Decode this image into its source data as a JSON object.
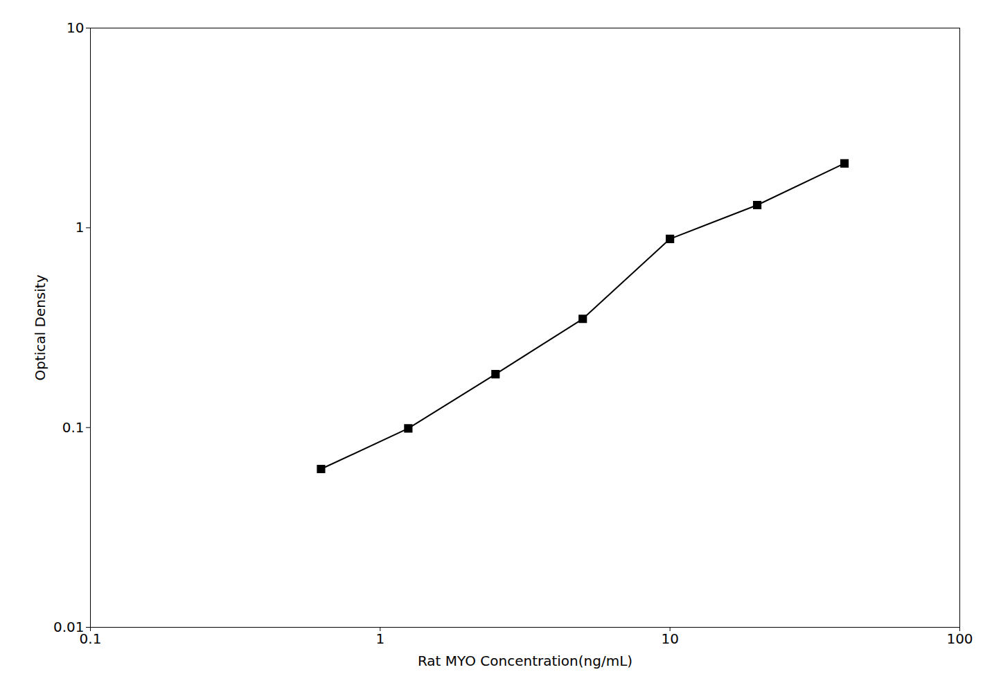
{
  "chart_data": {
    "type": "line",
    "x": [
      0.625,
      1.25,
      2.5,
      5.0,
      10.0,
      20.0,
      40.0
    ],
    "values": [
      0.062,
      0.099,
      0.185,
      0.35,
      0.88,
      1.3,
      2.1
    ],
    "xlabel": "Rat MYO Concentration(ng/mL)",
    "ylabel": "Optical Density",
    "xlim": [
      0.1,
      100
    ],
    "ylim": [
      0.01,
      10
    ],
    "xticks": [
      0.1,
      1,
      10,
      100
    ],
    "yticks": [
      0.01,
      0.1,
      1,
      10
    ],
    "log": true,
    "grid": false,
    "color": "#000000",
    "marker": "square"
  }
}
